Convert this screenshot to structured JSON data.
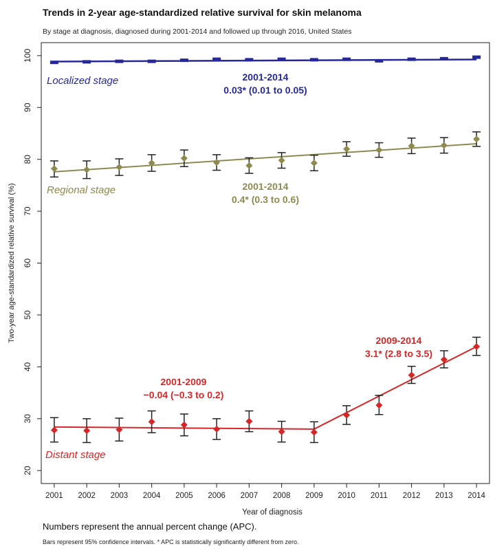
{
  "chart_data": {
    "type": "line",
    "title": "Trends in 2-year age-standardized relative survival for skin melanoma",
    "subtitle": "By stage at diagnosis, diagnosed during 2001-2014 and followed up through 2016, United States",
    "xlabel": "Year of diagnosis",
    "ylabel": "Two-year age-standardized relative survival (%)",
    "xlim": [
      2000.6,
      2014.4
    ],
    "ylim": [
      17.5,
      102.5
    ],
    "x_ticks": [
      "2001",
      "2002",
      "2003",
      "2004",
      "2005",
      "2006",
      "2007",
      "2008",
      "2009",
      "2010",
      "2011",
      "2012",
      "2013",
      "2014"
    ],
    "y_ticks": [
      20,
      30,
      40,
      50,
      60,
      70,
      80,
      90,
      100
    ],
    "grid": false,
    "series": [
      {
        "name": "Localized stage",
        "color": "#26289a",
        "x": [
          2001,
          2002,
          2003,
          2004,
          2005,
          2006,
          2007,
          2008,
          2009,
          2010,
          2011,
          2012,
          2013,
          2014
        ],
        "y": [
          98.7,
          98.8,
          98.9,
          98.9,
          99.1,
          99.3,
          99.2,
          99.3,
          99.2,
          99.3,
          99.0,
          99.3,
          99.4,
          99.7
        ],
        "ci_low": [
          98.5,
          98.6,
          98.7,
          98.7,
          98.9,
          99.1,
          99.0,
          99.1,
          99.0,
          99.1,
          98.8,
          99.1,
          99.2,
          99.5
        ],
        "ci_high": [
          98.9,
          99.0,
          99.1,
          99.1,
          99.3,
          99.5,
          99.4,
          99.5,
          99.4,
          99.5,
          99.2,
          99.5,
          99.6,
          99.9
        ],
        "trend": {
          "x": [
            2001,
            2014
          ],
          "y": [
            98.85,
            99.25
          ]
        },
        "apc_period": "2001-2014",
        "apc_text": "0.03* (0.01 to 0.05)"
      },
      {
        "name": "Regional stage",
        "color": "#8e8a4f",
        "x": [
          2001,
          2002,
          2003,
          2004,
          2005,
          2006,
          2007,
          2008,
          2009,
          2010,
          2011,
          2012,
          2013,
          2014
        ],
        "y": [
          78.2,
          78.0,
          78.5,
          79.3,
          80.2,
          79.4,
          78.8,
          79.8,
          79.3,
          82.0,
          81.8,
          82.6,
          82.7,
          83.9
        ],
        "ci_low": [
          76.6,
          76.3,
          76.9,
          77.7,
          78.6,
          77.9,
          77.3,
          78.3,
          77.8,
          80.6,
          80.4,
          81.1,
          81.2,
          82.5
        ],
        "ci_high": [
          79.7,
          79.7,
          80.1,
          80.9,
          81.8,
          80.9,
          80.3,
          81.3,
          80.8,
          83.4,
          83.2,
          84.1,
          84.2,
          85.3
        ],
        "trend": {
          "x": [
            2001,
            2014
          ],
          "y": [
            77.6,
            83.0
          ]
        },
        "apc_period": "2001-2014",
        "apc_text": "0.4* (0.3 to 0.6)"
      },
      {
        "name": "Distant stage",
        "color": "#d62728",
        "x": [
          2001,
          2002,
          2003,
          2004,
          2005,
          2006,
          2007,
          2008,
          2009,
          2010,
          2011,
          2012,
          2013,
          2014
        ],
        "y": [
          27.8,
          27.7,
          27.9,
          29.4,
          28.8,
          28.0,
          29.5,
          27.5,
          27.4,
          30.7,
          32.6,
          38.4,
          41.4,
          43.9
        ],
        "ci_low": [
          25.5,
          25.4,
          25.7,
          27.3,
          26.7,
          26.0,
          27.5,
          25.5,
          25.4,
          28.9,
          30.8,
          36.8,
          39.8,
          42.2
        ],
        "ci_high": [
          30.2,
          30.0,
          30.1,
          31.5,
          30.9,
          30.0,
          31.5,
          29.5,
          29.4,
          32.5,
          34.5,
          40.1,
          43.1,
          45.7
        ],
        "trend": {
          "x": [
            2001,
            2009,
            2014
          ],
          "y": [
            28.4,
            28.0,
            43.9
          ]
        },
        "apc_segments": [
          {
            "period": "2001-2009",
            "text": "−0.04 (−0.3 to 0.2)"
          },
          {
            "period": "2009-2014",
            "text": "3.1* (2.8 to 3.5)"
          }
        ]
      }
    ]
  },
  "notes": {
    "line1": "Numbers represent the annual percent change (APC).",
    "line2": "Bars represent 95% confidence intervals. * APC is statistically significantly different from zero."
  }
}
